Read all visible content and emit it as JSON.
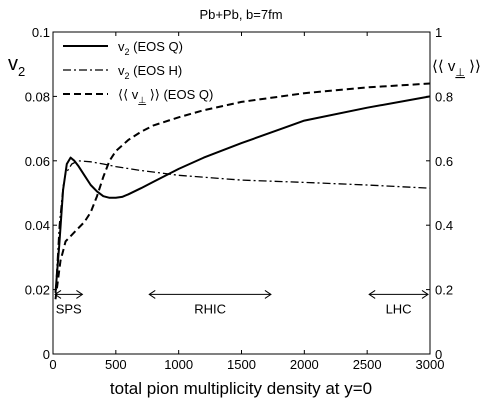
{
  "chart_data": {
    "type": "line",
    "title": "Pb+Pb, b=7fm",
    "xlabel": "total pion multiplicity density at y=0",
    "ylabel_left": "v2",
    "ylabel_right": "⟨⟨ v⊥ ⟩⟩",
    "xlim": [
      0,
      3000
    ],
    "ylim_left": [
      0,
      0.1
    ],
    "ylim_right": [
      0,
      1
    ],
    "x_ticks": [
      "0",
      "500",
      "1000",
      "1500",
      "2000",
      "2500",
      "3000"
    ],
    "y_ticks_left": [
      "0",
      "0.02",
      "0.04",
      "0.06",
      "0.08",
      "0.1"
    ],
    "y_ticks_right": [
      "0",
      "0.2",
      "0.4",
      "0.6",
      "0.8",
      "1"
    ],
    "grid": false,
    "legend_position": "top-left",
    "series": [
      {
        "name": "v2 (EOS Q)",
        "axis": "left",
        "style": "solid",
        "x": [
          20,
          50,
          80,
          110,
          140,
          170,
          200,
          250,
          300,
          350,
          400,
          450,
          500,
          550,
          600,
          700,
          800,
          1000,
          1200,
          1500,
          2000,
          2500,
          3000
        ],
        "y": [
          0.019,
          0.034,
          0.051,
          0.059,
          0.061,
          0.06,
          0.0585,
          0.0555,
          0.0525,
          0.0505,
          0.049,
          0.0485,
          0.0485,
          0.0488,
          0.0496,
          0.0515,
          0.0535,
          0.0575,
          0.061,
          0.0655,
          0.0725,
          0.0765,
          0.08
        ]
      },
      {
        "name": "v2 (EOS H)",
        "axis": "left",
        "style": "dashdot",
        "x": [
          20,
          50,
          80,
          100,
          150,
          200,
          300,
          400,
          500,
          700,
          1000,
          1500,
          2000,
          2500,
          3000
        ],
        "y": [
          0.019,
          0.04,
          0.052,
          0.056,
          0.059,
          0.06,
          0.0597,
          0.059,
          0.0582,
          0.057,
          0.0555,
          0.054,
          0.0533,
          0.0525,
          0.0515
        ]
      },
      {
        "name": "⟨⟨ v⊥ ⟩⟩ (EOS Q)",
        "axis": "right",
        "style": "dashed",
        "x": [
          20,
          40,
          60,
          80,
          100,
          150,
          200,
          250,
          300,
          350,
          400,
          450,
          500,
          600,
          700,
          800,
          1000,
          1200,
          1500,
          2000,
          2500,
          3000
        ],
        "y": [
          0.17,
          0.23,
          0.29,
          0.32,
          0.35,
          0.37,
          0.39,
          0.41,
          0.44,
          0.49,
          0.55,
          0.6,
          0.63,
          0.665,
          0.69,
          0.71,
          0.735,
          0.757,
          0.783,
          0.81,
          0.828,
          0.84
        ]
      }
    ],
    "legend": [
      {
        "label": "v2 (EOS Q)",
        "style": "solid"
      },
      {
        "label": "v2 (EOS H)",
        "style": "dashdot"
      },
      {
        "label": "⟨⟨ v⊥ ⟩⟩ (EOS Q)",
        "style": "dashed"
      }
    ],
    "annotations": [
      {
        "label": "SPS",
        "x_from": 0,
        "x_to": 250
      },
      {
        "label": "RHIC",
        "x_from": 750,
        "x_to": 1750
      },
      {
        "label": "LHC",
        "x_from": 2500,
        "x_to": 3000
      }
    ]
  }
}
